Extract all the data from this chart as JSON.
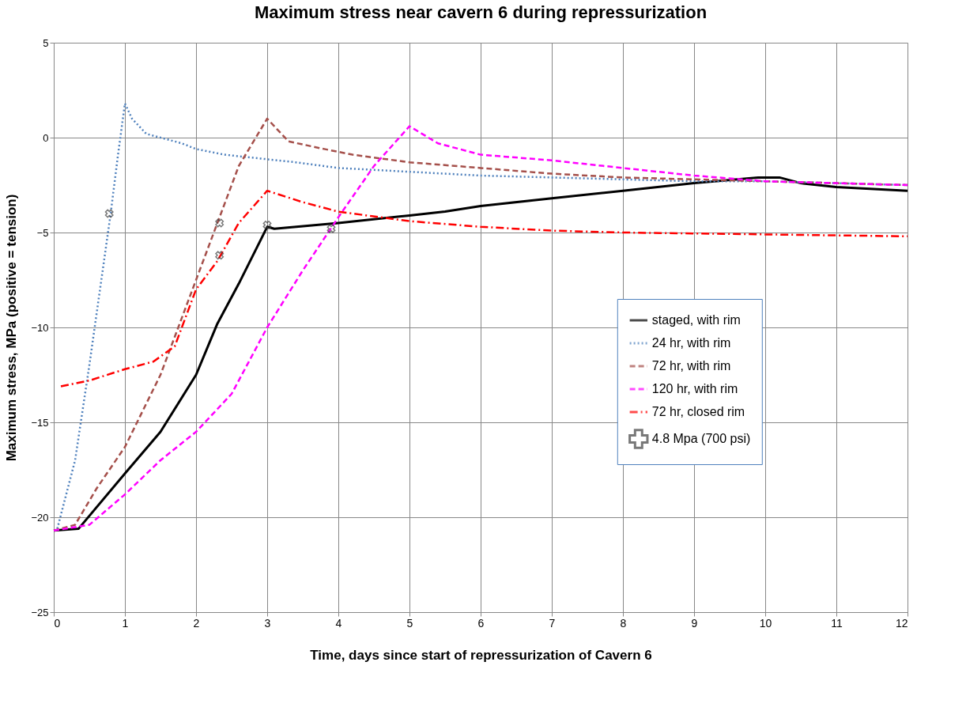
{
  "chart_data": {
    "type": "line",
    "title": "Maximum stress near cavern 6 during repressurization",
    "xlabel": "Time, days since start of repressurization  of Cavern 6",
    "ylabel": "Maximum stress, MPa (positive = tension)",
    "xlim": [
      0,
      12
    ],
    "xticks": [
      0,
      1,
      2,
      3,
      4,
      5,
      6,
      7,
      8,
      9,
      10,
      11,
      12
    ],
    "ylim": [
      -25,
      5
    ],
    "yticks": [
      -25,
      -20,
      -15,
      -10,
      -5,
      0,
      5
    ],
    "grid": true,
    "legend": "right",
    "series": [
      {
        "name": "staged, with rim",
        "color": "#000000",
        "line_style": "solid",
        "x": [
          0,
          0.35,
          1,
          1.5,
          2,
          2.3,
          2.6,
          3,
          3.1,
          4,
          5,
          5.5,
          6,
          7,
          8,
          9,
          9.9,
          10.2,
          10.5,
          11,
          12
        ],
        "values": [
          -20.7,
          -20.6,
          -17.7,
          -15.5,
          -12.5,
          -9.8,
          -7.7,
          -4.7,
          -4.8,
          -4.5,
          -4.1,
          -3.9,
          -3.6,
          -3.2,
          -2.8,
          -2.4,
          -2.1,
          -2.1,
          -2.4,
          -2.6,
          -2.8
        ]
      },
      {
        "name": "24 hr, with rim",
        "color": "#4f81bd",
        "line_style": "dotted",
        "x": [
          0.05,
          0.3,
          0.5,
          0.8,
          0.9,
          1,
          1.1,
          1.3,
          1.8,
          2,
          2.4,
          2.9,
          3.4,
          4,
          4.5,
          5,
          6,
          7,
          8,
          9,
          10,
          11,
          12
        ],
        "values": [
          -20.6,
          -17,
          -12,
          -4,
          -1,
          1.8,
          1,
          0.2,
          -0.3,
          -0.6,
          -0.9,
          -1.1,
          -1.3,
          -1.6,
          -1.7,
          -1.8,
          -2.0,
          -2.1,
          -2.2,
          -2.3,
          -2.3,
          -2.4,
          -2.5
        ]
      },
      {
        "name": "72 hr, with rim",
        "color": "#a5504b",
        "line_style": "dashed",
        "x": [
          0,
          0.3,
          0.6,
          1,
          1.5,
          2,
          2.3,
          2.6,
          3,
          3.3,
          3.8,
          4.2,
          5,
          6,
          7,
          8,
          9,
          10,
          11,
          12
        ],
        "values": [
          -20.7,
          -20.4,
          -18.5,
          -16.3,
          -12.5,
          -7.5,
          -4.5,
          -1.5,
          1.0,
          -0.2,
          -0.6,
          -0.9,
          -1.3,
          -1.6,
          -1.9,
          -2.1,
          -2.2,
          -2.3,
          -2.4,
          -2.5
        ]
      },
      {
        "name": "120 hr, with rim",
        "color": "#ff00ff",
        "line_style": "dashed",
        "x": [
          0,
          0.5,
          1,
          1.5,
          2,
          2.5,
          3,
          3.5,
          4,
          4.5,
          5,
          5.4,
          6,
          7,
          8,
          9,
          10,
          11,
          12
        ],
        "values": [
          -20.7,
          -20.4,
          -18.8,
          -17,
          -15.5,
          -13.5,
          -10,
          -7,
          -4.2,
          -1.5,
          0.6,
          -0.3,
          -0.9,
          -1.2,
          -1.6,
          -2,
          -2.3,
          -2.4,
          -2.5
        ]
      },
      {
        "name": "72 hr, closed rim",
        "color": "#ff0000",
        "line_style": "dashdot",
        "x": [
          0.1,
          0.5,
          1,
          1.4,
          1.7,
          2,
          2.3,
          2.6,
          3,
          3.5,
          4,
          5,
          6,
          7,
          8,
          10,
          12
        ],
        "values": [
          -13.1,
          -12.8,
          -12.2,
          -11.8,
          -11.0,
          -8,
          -6.5,
          -4.5,
          -2.8,
          -3.4,
          -3.9,
          -4.4,
          -4.7,
          -4.9,
          -5,
          -5.1,
          -5.2
        ]
      },
      {
        "name": "4.8 Mpa (700 psi)",
        "color": "#404040",
        "type": "scatter",
        "marker": "cross",
        "x": [
          0.78,
          2.33,
          2.33,
          3,
          3.9
        ],
        "values": [
          -4,
          -4.5,
          -6.2,
          -4.6,
          -4.8
        ]
      }
    ]
  }
}
